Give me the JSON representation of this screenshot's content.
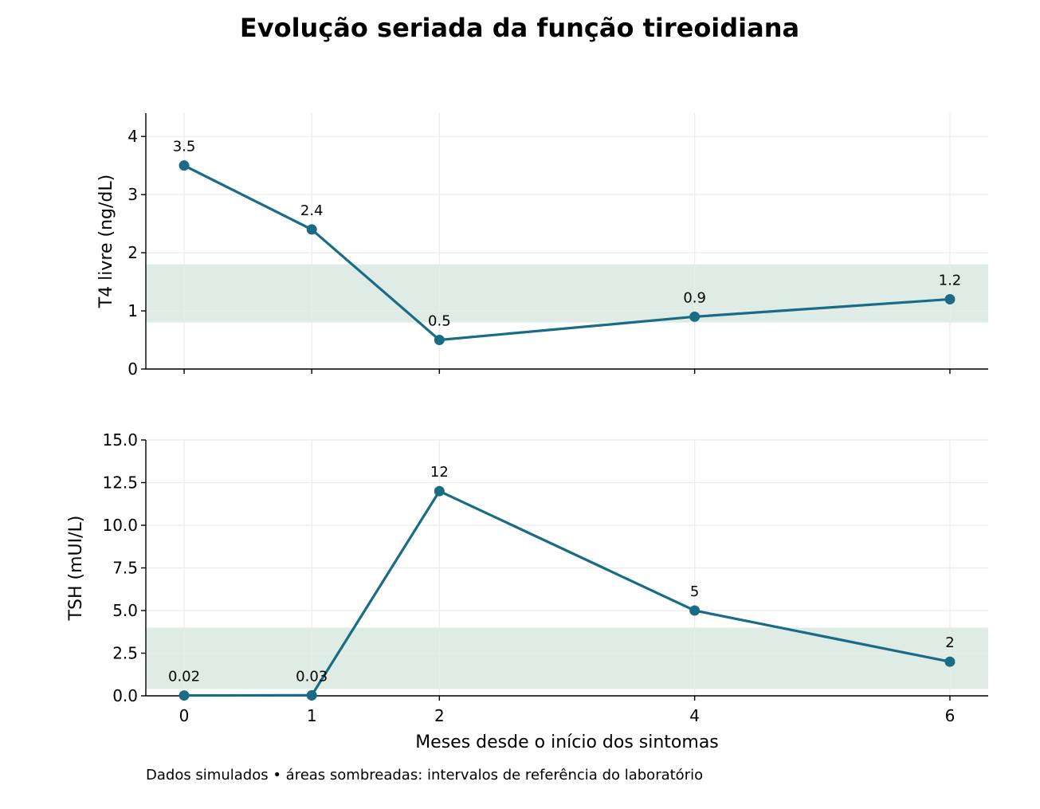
{
  "title": "Evolução seriada da função tireoidiana",
  "footnote": "Dados simulados • áreas sombreadas: intervalos de referência do laboratório",
  "colors": {
    "series": "#1a6b85",
    "reference_band": "#dfece5",
    "grid": "#ebebeb",
    "axis": "#000000"
  },
  "chart_data": [
    {
      "type": "line",
      "x": [
        0,
        1,
        2,
        4,
        6
      ],
      "series": [
        {
          "values": [
            3.5,
            2.4,
            0.5,
            0.9,
            1.2
          ],
          "labels": [
            "3.5",
            "2.4",
            "0.5",
            "0.9",
            "1.2"
          ]
        }
      ],
      "ylabel": "T4 livre (ng/dL)",
      "xlabel": "",
      "ylim": [
        0,
        4.4
      ],
      "xlim": [
        -0.3,
        6.3
      ],
      "xticks": [
        0,
        1,
        2,
        4,
        6
      ],
      "xtick_labels_visible": false,
      "yticks": [
        0,
        1,
        2,
        3,
        4
      ],
      "ytick_labels": [
        "0",
        "1",
        "2",
        "3",
        "4"
      ],
      "reference_range": [
        0.8,
        1.8
      ],
      "grid": true
    },
    {
      "type": "line",
      "x": [
        0,
        1,
        2,
        4,
        6
      ],
      "series": [
        {
          "values": [
            0.02,
            0.03,
            12,
            5,
            2
          ],
          "labels": [
            "0.02",
            "0.03",
            "12",
            "5",
            "2"
          ]
        }
      ],
      "ylabel": "TSH (mUI/L)",
      "xlabel": "Meses desde o início dos sintomas",
      "ylim": [
        0,
        15
      ],
      "xlim": [
        -0.3,
        6.3
      ],
      "xticks": [
        0,
        1,
        2,
        4,
        6
      ],
      "xtick_labels": [
        "0",
        "1",
        "2",
        "4",
        "6"
      ],
      "xtick_labels_visible": true,
      "yticks": [
        0,
        2.5,
        5,
        7.5,
        10,
        12.5,
        15
      ],
      "ytick_labels": [
        "0.0",
        "2.5",
        "5.0",
        "7.5",
        "10.0",
        "12.5",
        "15.0"
      ],
      "reference_range": [
        0.4,
        4.0
      ],
      "grid": true
    }
  ]
}
